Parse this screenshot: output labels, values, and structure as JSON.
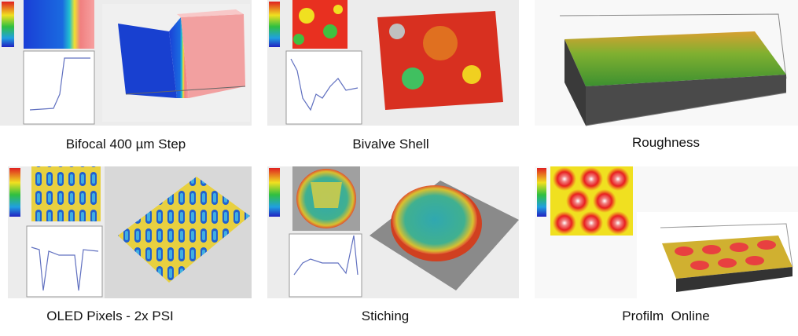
{
  "gallery": {
    "items": [
      {
        "caption": "Bifocal 400 µm Step"
      },
      {
        "caption": "Bivalve Shell"
      },
      {
        "caption": "Roughness"
      },
      {
        "caption": "OLED Pixels - 2x PSI"
      },
      {
        "caption": "Stiching"
      },
      {
        "caption": "Profilm  Online"
      }
    ]
  }
}
